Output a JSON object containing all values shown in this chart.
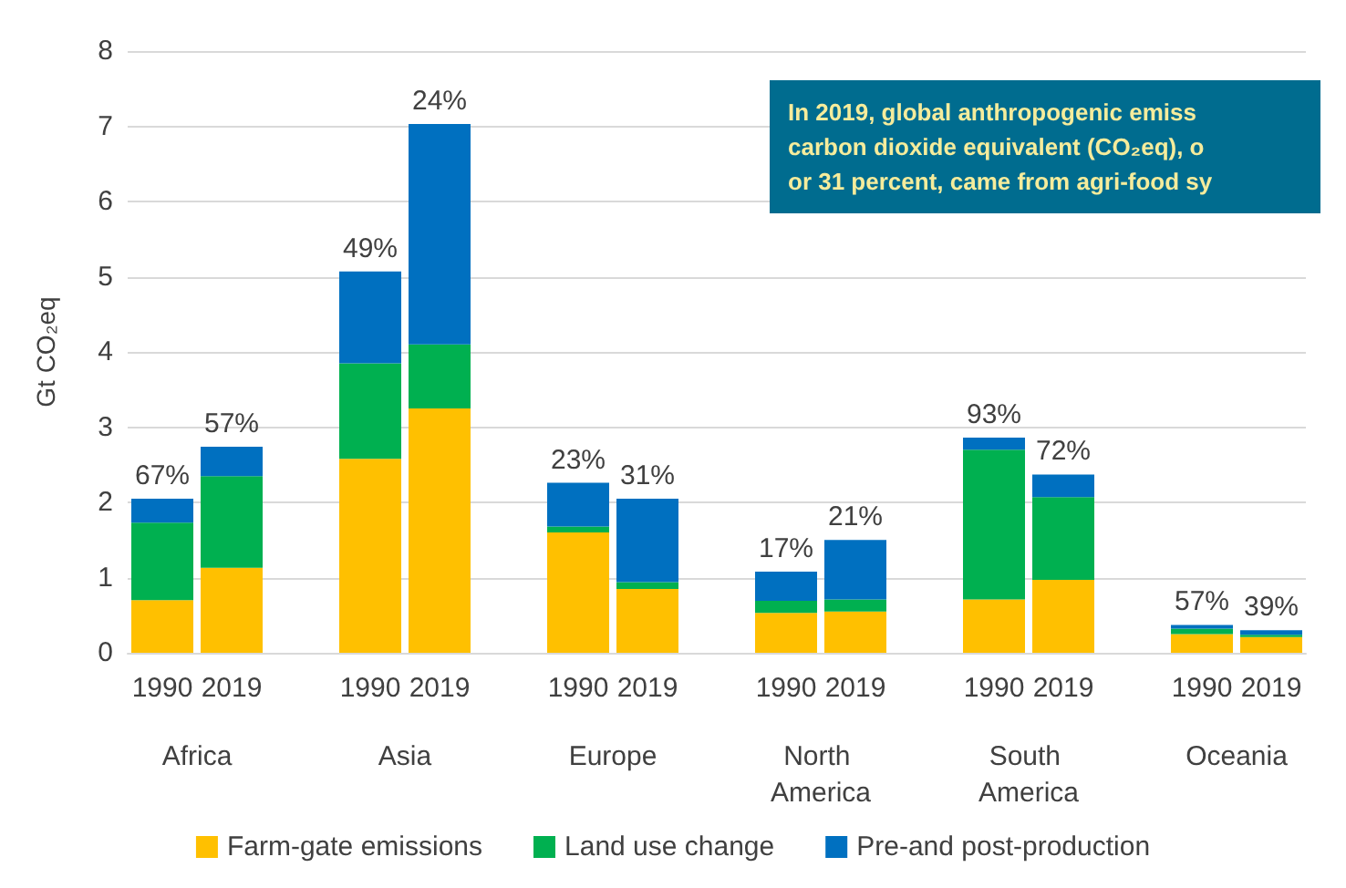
{
  "chart_data": {
    "type": "bar",
    "stacked": true,
    "ylabel": "Gt CO₂eq",
    "categories": [
      "1990",
      "2019",
      null,
      "1990",
      "2019",
      null,
      "1990",
      "2019",
      null,
      "1990",
      "2019",
      null,
      "1990",
      "2019",
      null,
      "1990",
      "2019"
    ],
    "series": [
      {
        "name": "Farm-gate emissions",
        "color": "#ffc000",
        "values": [
          0.7,
          1.13,
          null,
          2.58,
          3.25,
          null,
          1.6,
          0.85,
          null,
          0.53,
          0.55,
          null,
          0.71,
          0.97,
          null,
          0.25,
          0.21
        ]
      },
      {
        "name": "Land use change",
        "color": "#00b050",
        "values": [
          1.03,
          1.22,
          null,
          1.27,
          0.85,
          null,
          0.08,
          0.09,
          null,
          0.16,
          0.16,
          null,
          1.99,
          1.1,
          null,
          0.07,
          0.03
        ]
      },
      {
        "name": "Pre-and post-production",
        "color": "#0070c0",
        "values": [
          0.32,
          0.39,
          null,
          1.22,
          2.93,
          null,
          0.58,
          1.11,
          null,
          0.39,
          0.79,
          null,
          0.16,
          0.3,
          null,
          0.05,
          0.06
        ]
      }
    ],
    "ylim": [
      0,
      8
    ],
    "yticks": [
      0,
      1,
      2,
      3,
      4,
      5,
      6,
      7,
      8
    ],
    "grid": "y",
    "legend": "bottom",
    "annotations": [
      "Africa",
      "Asia",
      "Europe",
      "North America",
      "South America",
      "Oceania",
      "In 2019, global anthropogenic emiss\ncarbon dioxide equivalent (CO₂eq), o\nor 31 percent, came from agri-food sy",
      "67%",
      "57%",
      "49%",
      "24%",
      "23%",
      "31%",
      "17%",
      "21%",
      "93%",
      "72%",
      "57%",
      "39%"
    ]
  }
}
